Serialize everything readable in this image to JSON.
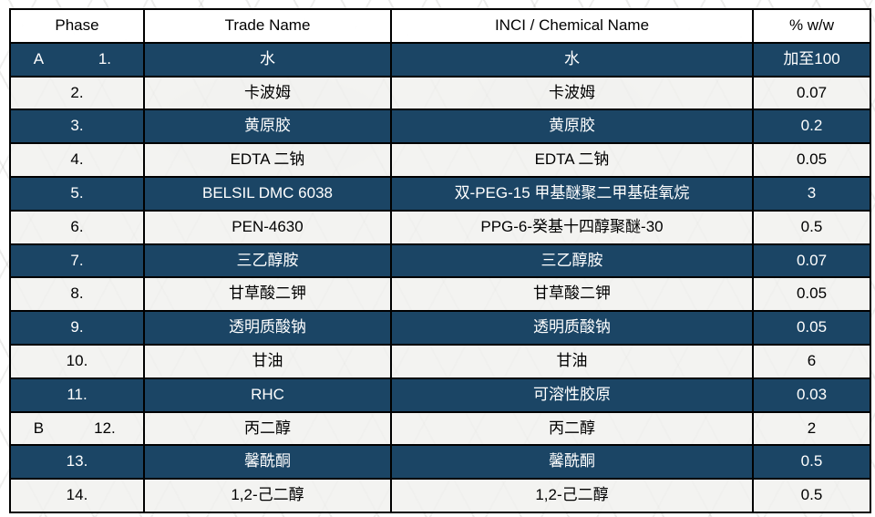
{
  "colors": {
    "dark_row_bg": "#1B4565",
    "dark_row_text": "#FFFFFF",
    "light_row_bg": "#F0F0EE",
    "header_bg": "#FFFFFF",
    "border": "#000000"
  },
  "table": {
    "headers": [
      "Phase",
      "Trade Name",
      "INCI / Chemical Name",
      "% w/w"
    ],
    "rows": [
      {
        "phase": "A",
        "num": "1.",
        "trade": "水",
        "inci": "水",
        "pct": "加至100",
        "dark": true
      },
      {
        "phase": "",
        "num": "2.",
        "trade": "卡波姆",
        "inci": "卡波姆",
        "pct": "0.07",
        "dark": false
      },
      {
        "phase": "",
        "num": "3.",
        "trade": "黄原胶",
        "inci": "黄原胶",
        "pct": "0.2",
        "dark": true
      },
      {
        "phase": "",
        "num": "4.",
        "trade": "EDTA 二钠",
        "inci": "EDTA 二钠",
        "pct": "0.05",
        "dark": false
      },
      {
        "phase": "",
        "num": "5.",
        "trade": "BELSIL DMC 6038",
        "inci": "双-PEG-15 甲基醚聚二甲基硅氧烷",
        "pct": "3",
        "dark": true
      },
      {
        "phase": "",
        "num": "6.",
        "trade": "PEN-4630",
        "inci": "PPG-6-癸基十四醇聚醚-30",
        "pct": "0.5",
        "dark": false
      },
      {
        "phase": "",
        "num": "7.",
        "trade": "三乙醇胺",
        "inci": "三乙醇胺",
        "pct": "0.07",
        "dark": true
      },
      {
        "phase": "",
        "num": "8.",
        "trade": "甘草酸二钾",
        "inci": "甘草酸二钾",
        "pct": "0.05",
        "dark": false
      },
      {
        "phase": "",
        "num": "9.",
        "trade": "透明质酸钠",
        "inci": "透明质酸钠",
        "pct": "0.05",
        "dark": true
      },
      {
        "phase": "",
        "num": "10.",
        "trade": "甘油",
        "inci": "甘油",
        "pct": "6",
        "dark": false
      },
      {
        "phase": "",
        "num": "11.",
        "trade": "RHC",
        "inci": "可溶性胶原",
        "pct": "0.03",
        "dark": true
      },
      {
        "phase": "B",
        "num": "12.",
        "trade": "丙二醇",
        "inci": "丙二醇",
        "pct": "2",
        "dark": false
      },
      {
        "phase": "",
        "num": "13.",
        "trade": "馨酰酮",
        "inci": "馨酰酮",
        "pct": "0.5",
        "dark": true
      },
      {
        "phase": "",
        "num": "14.",
        "trade": "1,2-己二醇",
        "inci": "1,2-己二醇",
        "pct": "0.5",
        "dark": false
      }
    ]
  }
}
